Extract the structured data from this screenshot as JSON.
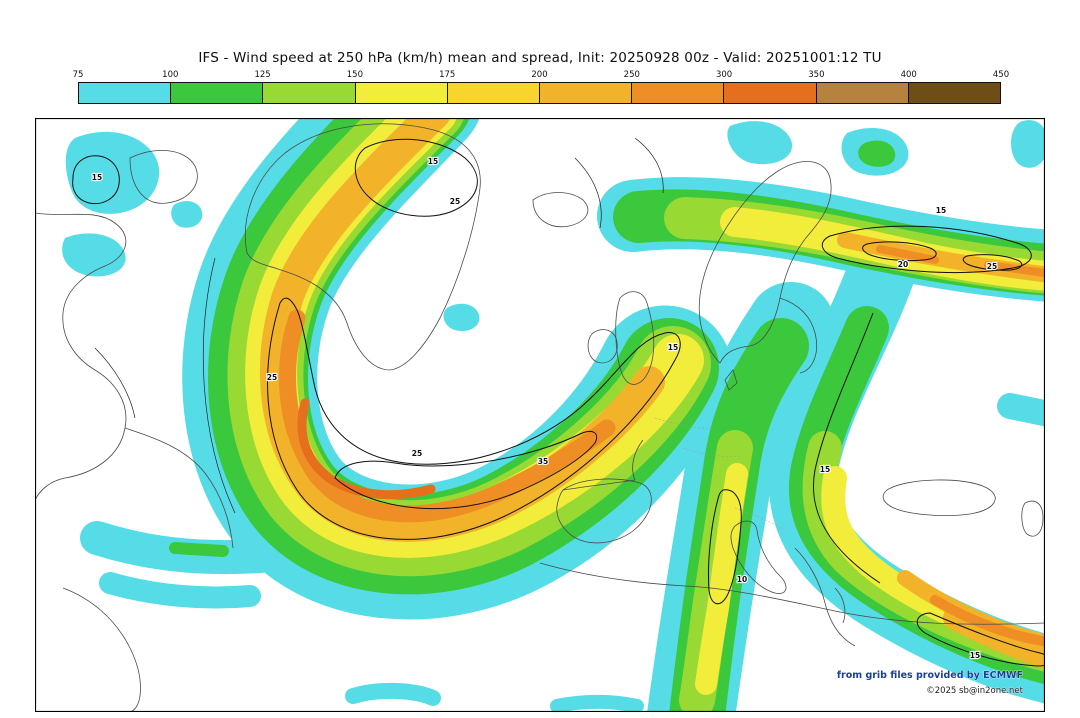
{
  "title": "IFS - Wind speed at 250 hPa (km/h) mean and spread, Init: 20250928 00z - Valid: 20251001:12 TU",
  "colorbar": {
    "ticks": [
      "75",
      "100",
      "125",
      "150",
      "175",
      "200",
      "250",
      "300",
      "350",
      "400",
      "450"
    ],
    "colors": [
      "#55DCE6",
      "#3CC83C",
      "#98D934",
      "#F2EC3A",
      "#F8D52E",
      "#F2B32A",
      "#EE8E24",
      "#E56F1C",
      "#B5833E",
      "#6E4E16"
    ]
  },
  "map": {
    "contour_labels": [
      "15",
      "15",
      "25",
      "25",
      "35",
      "25",
      "15",
      "20",
      "25",
      "15",
      "10",
      "15",
      "15"
    ]
  },
  "attribution": {
    "line1": "from grib files provided by ECMWF",
    "line2": "©2025 sb@in2one.net",
    "color1": "#1b3f9e",
    "color2": "#222222"
  }
}
